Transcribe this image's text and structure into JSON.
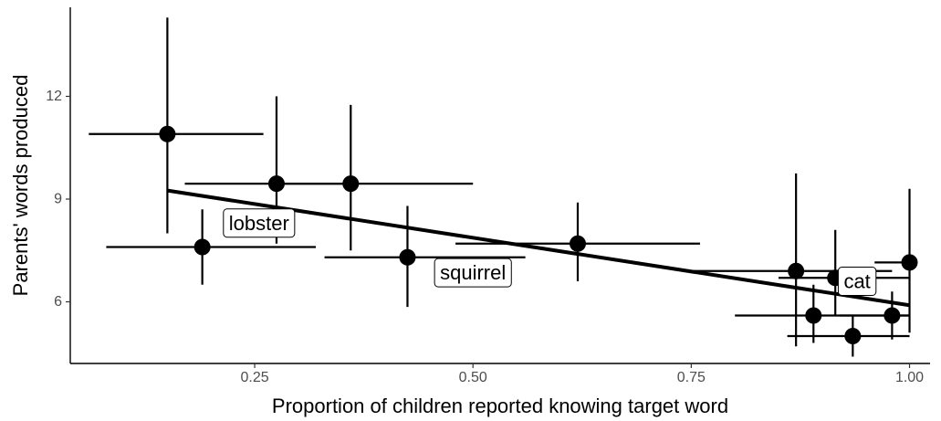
{
  "chart_data": {
    "type": "scatter",
    "title": "",
    "xlabel": "Proportion of children reported knowing target word",
    "ylabel": "Parents' words produced",
    "xlim": [
      0.0388,
      1.0235
    ],
    "ylim": [
      4.2,
      14.6
    ],
    "x_ticks": [
      0.25,
      0.5,
      0.75,
      1.0
    ],
    "x_tick_labels": [
      "0.25",
      "0.50",
      "0.75",
      "1.00"
    ],
    "y_ticks": [
      6,
      9,
      12
    ],
    "y_tick_labels": [
      "6",
      "9",
      "12"
    ],
    "grid": false,
    "legend": "none",
    "colors": {
      "points": "#000000",
      "line": "#000000"
    },
    "points": [
      {
        "x": 0.15,
        "y": 10.9,
        "xmin": 0.06,
        "xmax": 0.26,
        "ymin": 8.0,
        "ymax": 14.3
      },
      {
        "x": 0.19,
        "y": 7.6,
        "xmin": 0.08,
        "xmax": 0.32,
        "ymin": 6.5,
        "ymax": 8.7
      },
      {
        "x": 0.275,
        "y": 9.45,
        "xmin": 0.17,
        "xmax": 0.36,
        "ymin": 7.7,
        "ymax": 12.0
      },
      {
        "x": 0.36,
        "y": 9.45,
        "xmin": 0.27,
        "xmax": 0.5,
        "ymin": 7.5,
        "ymax": 11.75
      },
      {
        "x": 0.425,
        "y": 7.3,
        "xmin": 0.33,
        "xmax": 0.56,
        "ymin": 5.85,
        "ymax": 8.8
      },
      {
        "x": 0.62,
        "y": 7.7,
        "xmin": 0.48,
        "xmax": 0.76,
        "ymin": 6.6,
        "ymax": 8.9
      },
      {
        "x": 0.87,
        "y": 6.9,
        "xmin": 0.75,
        "xmax": 0.98,
        "ymin": 4.7,
        "ymax": 9.75
      },
      {
        "x": 0.89,
        "y": 5.6,
        "xmin": 0.8,
        "xmax": 1.0,
        "ymin": 4.8,
        "ymax": 6.5
      },
      {
        "x": 0.915,
        "y": 6.7,
        "xmin": 0.85,
        "xmax": 1.0,
        "ymin": 5.6,
        "ymax": 8.1
      },
      {
        "x": 0.935,
        "y": 5.0,
        "xmin": 0.86,
        "xmax": 1.0,
        "ymin": 4.4,
        "ymax": 5.6
      },
      {
        "x": 0.98,
        "y": 5.6,
        "xmin": 0.92,
        "xmax": 1.0,
        "ymin": 4.9,
        "ymax": 6.3
      },
      {
        "x": 1.0,
        "y": 7.15,
        "xmin": 0.96,
        "xmax": 1.0,
        "ymin": 5.1,
        "ymax": 9.3
      }
    ],
    "trend_line": {
      "x": [
        0.15,
        1.0
      ],
      "y": [
        9.25,
        5.9
      ]
    },
    "annotations": [
      {
        "text": "lobster",
        "x": 0.255,
        "y": 8.3
      },
      {
        "text": "squirrel",
        "x": 0.5,
        "y": 6.85
      },
      {
        "text": "cat",
        "x": 0.94,
        "y": 6.6
      }
    ]
  }
}
